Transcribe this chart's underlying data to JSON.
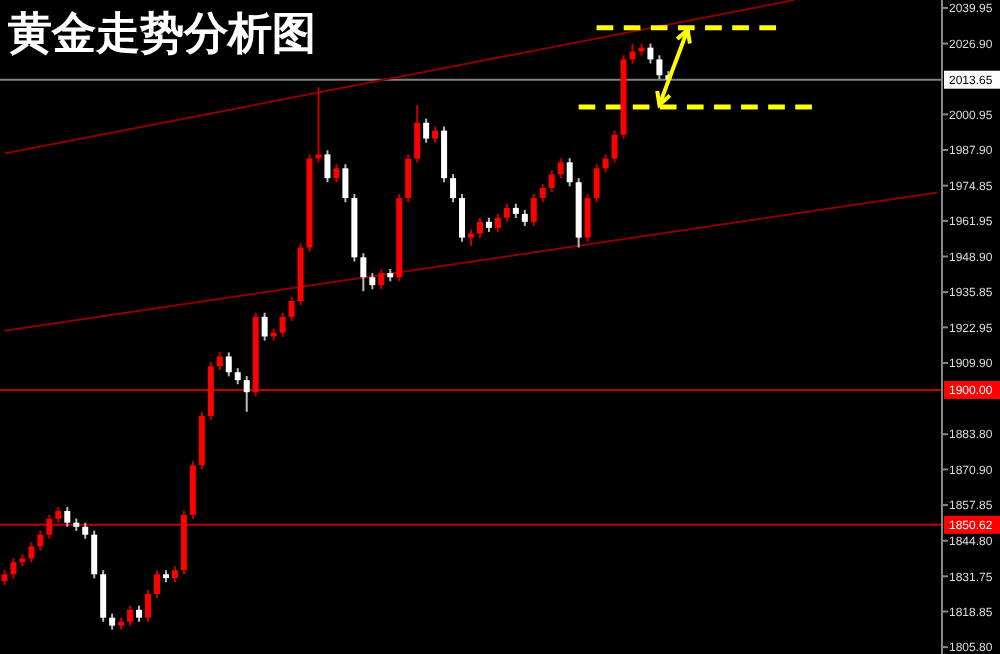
{
  "chart_data": {
    "type": "candlestick",
    "title": "黄金走势分析图",
    "categories": [
      null,
      null,
      null,
      null,
      null,
      null,
      null,
      null,
      null,
      null,
      null,
      null,
      null,
      null,
      null,
      null,
      null,
      null,
      null,
      null,
      null,
      null,
      null,
      null,
      null,
      null,
      null,
      null,
      null,
      null,
      null,
      null,
      null,
      null,
      null,
      null,
      null,
      null,
      null,
      null,
      null,
      null,
      null,
      null,
      null,
      null,
      null,
      null,
      null,
      null,
      null,
      null,
      null,
      null,
      null,
      null,
      null,
      null,
      null,
      null,
      null,
      null,
      null,
      null,
      null,
      null,
      null,
      null,
      null,
      null,
      null,
      null,
      null,
      null,
      null,
      null,
      null,
      null,
      null,
      null,
      null,
      null,
      null,
      null,
      null,
      null,
      null,
      null,
      null,
      null,
      null,
      null,
      null,
      null,
      null,
      null,
      null,
      null,
      null,
      null,
      null,
      null,
      null,
      null,
      null
    ],
    "ohlc": [
      [
        1830.0,
        1834.0,
        1828.5,
        1832.5
      ],
      [
        1832.5,
        1838.4,
        1831.0,
        1836.9
      ],
      [
        1836.9,
        1839.8,
        1835.4,
        1838.3
      ],
      [
        1838.3,
        1844.2,
        1836.8,
        1842.7
      ],
      [
        1842.7,
        1848.5,
        1841.2,
        1847.0
      ],
      [
        1847.0,
        1854.3,
        1845.5,
        1852.8
      ],
      [
        1852.8,
        1857.2,
        1851.3,
        1855.7
      ],
      [
        1855.7,
        1857.2,
        1849.9,
        1851.4
      ],
      [
        1851.4,
        1852.9,
        1848.4,
        1849.9
      ],
      [
        1849.9,
        1851.4,
        1845.5,
        1847.0
      ],
      [
        1847.0,
        1848.5,
        1831.0,
        1832.5
      ],
      [
        1832.5,
        1834.0,
        1815.1,
        1816.6
      ],
      [
        1816.6,
        1818.1,
        1812.2,
        1813.7
      ],
      [
        1813.7,
        1816.6,
        1812.2,
        1815.1
      ],
      [
        1815.1,
        1821.0,
        1813.6,
        1819.5
      ],
      [
        1819.5,
        1821.0,
        1815.1,
        1816.6
      ],
      [
        1816.6,
        1826.8,
        1815.1,
        1825.3
      ],
      [
        1825.3,
        1834.0,
        1823.8,
        1832.5
      ],
      [
        1832.5,
        1834.0,
        1829.6,
        1831.1
      ],
      [
        1831.1,
        1835.5,
        1829.6,
        1834.0
      ],
      [
        1834.0,
        1855.8,
        1832.5,
        1854.3
      ],
      [
        1854.3,
        1873.9,
        1852.8,
        1872.4
      ],
      [
        1872.4,
        1892.0,
        1870.9,
        1890.5
      ],
      [
        1890.5,
        1910.2,
        1889.0,
        1908.7
      ],
      [
        1908.7,
        1913.8,
        1907.2,
        1912.3
      ],
      [
        1912.3,
        1913.8,
        1905.0,
        1906.5
      ],
      [
        1906.5,
        1908.0,
        1902.1,
        1903.6
      ],
      [
        1903.6,
        1905.1,
        1892.0,
        1899.2
      ],
      [
        1899.2,
        1928.3,
        1897.7,
        1926.8
      ],
      [
        1926.8,
        1928.3,
        1918.1,
        1919.6
      ],
      [
        1919.6,
        1922.5,
        1918.1,
        1921.0
      ],
      [
        1921.0,
        1928.3,
        1919.5,
        1926.8
      ],
      [
        1926.8,
        1934.1,
        1925.3,
        1932.6
      ],
      [
        1932.6,
        1953.7,
        1931.1,
        1952.2
      ],
      [
        1952.2,
        1986.3,
        1950.7,
        1984.8
      ],
      [
        1984.8,
        2010.9,
        1983.3,
        1986.3
      ],
      [
        1986.3,
        1987.8,
        1976.1,
        1977.6
      ],
      [
        1977.6,
        1982.7,
        1976.1,
        1981.2
      ],
      [
        1981.2,
        1982.7,
        1968.8,
        1970.3
      ],
      [
        1970.3,
        1971.8,
        1947.1,
        1948.6
      ],
      [
        1948.6,
        1950.1,
        1936.2,
        1941.3
      ],
      [
        1941.3,
        1942.8,
        1936.9,
        1938.4
      ],
      [
        1938.4,
        1944.3,
        1936.9,
        1942.8
      ],
      [
        1942.8,
        1944.3,
        1939.8,
        1941.3
      ],
      [
        1941.3,
        1971.8,
        1939.8,
        1970.3
      ],
      [
        1970.3,
        1986.3,
        1968.8,
        1984.8
      ],
      [
        1984.8,
        2004.4,
        1983.3,
        1997.9
      ],
      [
        1997.9,
        1999.4,
        1990.6,
        1992.1
      ],
      [
        1992.1,
        1996.5,
        1990.6,
        1995.0
      ],
      [
        1995.0,
        1996.5,
        1976.1,
        1977.6
      ],
      [
        1977.6,
        1979.1,
        1968.8,
        1970.3
      ],
      [
        1970.3,
        1971.8,
        1954.3,
        1955.8
      ],
      [
        1955.8,
        1958.8,
        1952.8,
        1957.3
      ],
      [
        1957.3,
        1963.1,
        1955.8,
        1961.6
      ],
      [
        1961.6,
        1963.1,
        1957.9,
        1959.4
      ],
      [
        1959.4,
        1964.6,
        1957.9,
        1963.1
      ],
      [
        1963.1,
        1968.2,
        1961.6,
        1966.7
      ],
      [
        1966.7,
        1968.2,
        1963.0,
        1964.5
      ],
      [
        1964.5,
        1966.0,
        1960.1,
        1961.6
      ],
      [
        1961.6,
        1971.8,
        1960.1,
        1970.3
      ],
      [
        1970.3,
        1975.5,
        1968.8,
        1974.0
      ],
      [
        1974.0,
        1980.5,
        1972.5,
        1979.0
      ],
      [
        1979.0,
        1984.9,
        1977.5,
        1983.4
      ],
      [
        1983.4,
        1984.9,
        1974.6,
        1976.1
      ],
      [
        1976.1,
        1977.6,
        1952.2,
        1955.8
      ],
      [
        1955.8,
        1971.8,
        1954.3,
        1970.3
      ],
      [
        1970.3,
        1982.7,
        1968.8,
        1981.2
      ],
      [
        1981.2,
        1986.3,
        1979.7,
        1984.8
      ],
      [
        1984.8,
        1995.0,
        1983.3,
        1993.5
      ],
      [
        1993.5,
        2022.6,
        1992.0,
        2021.1
      ],
      [
        2021.1,
        2026.9,
        2019.6,
        2024.0
      ],
      [
        2024.0,
        2026.9,
        2022.5,
        2025.4
      ],
      [
        2025.4,
        2026.9,
        2019.6,
        2021.1
      ],
      [
        2021.1,
        2022.6,
        2013.8,
        2015.3
      ],
      [
        2015.3,
        2016.8,
        2012.2,
        2013.65
      ],
      null,
      null,
      null,
      null,
      null,
      null,
      null,
      null,
      null,
      null,
      null,
      null,
      null,
      null,
      null,
      null,
      null,
      null,
      null,
      null,
      null,
      null,
      null,
      null,
      null,
      null,
      null,
      null,
      null,
      null
    ],
    "series": [
      {
        "type": "line",
        "color": "#8b0000",
        "values": [
          1986.6,
          null,
          null,
          null,
          null,
          null,
          null,
          null,
          null,
          null,
          null,
          null,
          null,
          null,
          null,
          null,
          null,
          null,
          null,
          null,
          null,
          null,
          null,
          null,
          null,
          null,
          null,
          null,
          null,
          null,
          null,
          null,
          null,
          null,
          null,
          null,
          null,
          null,
          null,
          null,
          null,
          null,
          null,
          null,
          null,
          null,
          null,
          null,
          null,
          null,
          null,
          null,
          null,
          null,
          null,
          null,
          null,
          null,
          null,
          null,
          null,
          null,
          null,
          null,
          null,
          null,
          null,
          null,
          null,
          null,
          null,
          null,
          null,
          null,
          null,
          null,
          null,
          null,
          null,
          null,
          null,
          null,
          null,
          null,
          null,
          null,
          null,
          null,
          2042.8,
          null,
          null,
          null,
          null,
          null,
          null,
          null,
          null,
          null,
          null,
          null,
          null,
          null,
          null,
          null,
          null
        ]
      },
      {
        "type": "line",
        "color": "#8b0000",
        "values": [
          1921.7,
          null,
          null,
          null,
          null,
          null,
          null,
          null,
          null,
          null,
          null,
          null,
          null,
          null,
          null,
          null,
          null,
          null,
          null,
          null,
          null,
          null,
          null,
          null,
          null,
          null,
          null,
          null,
          null,
          null,
          null,
          null,
          null,
          null,
          null,
          null,
          null,
          null,
          null,
          null,
          null,
          null,
          null,
          null,
          null,
          null,
          null,
          null,
          null,
          null,
          null,
          null,
          null,
          null,
          null,
          null,
          null,
          null,
          null,
          null,
          null,
          null,
          null,
          null,
          null,
          null,
          null,
          null,
          null,
          null,
          null,
          null,
          null,
          null,
          null,
          null,
          null,
          null,
          null,
          null,
          null,
          null,
          null,
          null,
          null,
          null,
          null,
          null,
          null,
          null,
          null,
          null,
          null,
          null,
          null,
          null,
          null,
          null,
          null,
          null,
          null,
          null,
          null,
          null,
          1972.3
        ]
      },
      {
        "type": "line",
        "color": "#ffff00",
        "line_style": "dashed",
        "values": [
          null,
          null,
          null,
          null,
          null,
          null,
          null,
          null,
          null,
          null,
          null,
          null,
          null,
          null,
          null,
          null,
          null,
          null,
          null,
          null,
          null,
          null,
          null,
          null,
          null,
          null,
          null,
          null,
          null,
          null,
          null,
          null,
          null,
          null,
          null,
          null,
          null,
          null,
          null,
          null,
          null,
          null,
          null,
          null,
          null,
          null,
          null,
          null,
          null,
          null,
          null,
          null,
          null,
          null,
          null,
          null,
          null,
          null,
          null,
          null,
          null,
          null,
          null,
          null,
          null,
          null,
          2032.7,
          null,
          null,
          null,
          null,
          null,
          null,
          null,
          null,
          null,
          null,
          null,
          null,
          null,
          null,
          null,
          null,
          null,
          null,
          null,
          2032.7,
          null,
          null,
          null,
          null,
          null,
          null,
          null,
          null,
          null,
          null,
          null,
          null,
          null,
          null,
          null,
          null,
          null,
          null
        ]
      },
      {
        "type": "line",
        "color": "#ffff00",
        "line_style": "dashed",
        "values": [
          null,
          null,
          null,
          null,
          null,
          null,
          null,
          null,
          null,
          null,
          null,
          null,
          null,
          null,
          null,
          null,
          null,
          null,
          null,
          null,
          null,
          null,
          null,
          null,
          null,
          null,
          null,
          null,
          null,
          null,
          null,
          null,
          null,
          null,
          null,
          null,
          null,
          null,
          null,
          null,
          null,
          null,
          null,
          null,
          null,
          null,
          null,
          null,
          null,
          null,
          null,
          null,
          null,
          null,
          null,
          null,
          null,
          null,
          null,
          null,
          null,
          null,
          null,
          null,
          2003.7,
          null,
          null,
          null,
          null,
          null,
          null,
          null,
          null,
          null,
          null,
          null,
          null,
          null,
          null,
          null,
          null,
          null,
          null,
          null,
          null,
          null,
          null,
          null,
          null,
          null,
          2003.7,
          null,
          null,
          null,
          null,
          null,
          null,
          null,
          null,
          null,
          null,
          null,
          null,
          null,
          null
        ]
      }
    ],
    "ylim": [
      1803.3,
      2042.85
    ],
    "yticks": [
      {
        "value": 2039.95,
        "label": "2039.95"
      },
      {
        "value": 2026.9,
        "label": "2026.90"
      },
      {
        "value": 2000.95,
        "label": "2000.95"
      },
      {
        "value": 1987.9,
        "label": "1987.90"
      },
      {
        "value": 1974.85,
        "label": "1974.85"
      },
      {
        "value": 1961.95,
        "label": "1961.95"
      },
      {
        "value": 1948.9,
        "label": "1948.90"
      },
      {
        "value": 1935.85,
        "label": "1935.85"
      },
      {
        "value": 1922.95,
        "label": "1922.95"
      },
      {
        "value": 1909.9,
        "label": "1909.90"
      },
      {
        "value": 1883.8,
        "label": "1883.80"
      },
      {
        "value": 1870.9,
        "label": "1870.90"
      },
      {
        "value": 1857.85,
        "label": "1857.85"
      },
      {
        "value": 1844.8,
        "label": "1844.80"
      },
      {
        "value": 1831.75,
        "label": "1831.75"
      },
      {
        "value": 1818.85,
        "label": "1818.85"
      },
      {
        "value": 1805.8,
        "label": "1805.80"
      }
    ],
    "tick_labels": "y",
    "ref_lines": [
      {
        "axis": "y",
        "value": 2013.65,
        "label": "2013.65",
        "color": "#808080"
      },
      {
        "axis": "y",
        "value": 1900.0,
        "label": "1900.00",
        "color": "#c00000"
      },
      {
        "axis": "y",
        "value": 1850.62,
        "label": "1850.62",
        "color": "#c00000"
      }
    ]
  }
}
